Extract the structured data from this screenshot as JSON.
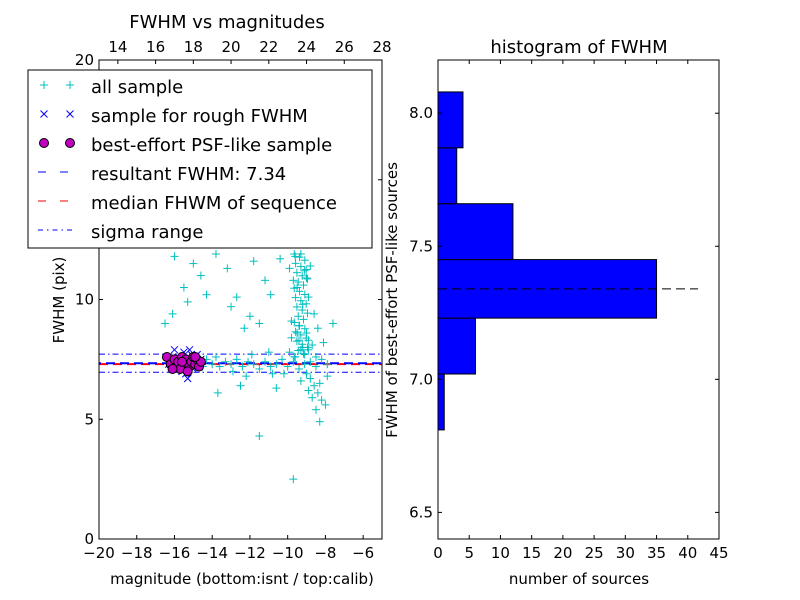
{
  "colors": {
    "all_sample": "#00bfbf",
    "rough_sample": "#0000ff",
    "best_sample_face": "#bf00bf",
    "best_sample_edge": "#000000",
    "resultant": "#0000ff",
    "median": "#ff0000",
    "sigma": "#0000ff",
    "hist_bar": "#0000ff",
    "hist_median": "#000000"
  },
  "chart_data": [
    {
      "type": "scatter",
      "title": "FWHM vs magnitudes",
      "xlabel": "magnitude (bottom:isnt / top:calib)",
      "ylabel": "FWHM (pix)",
      "xlim": [
        -20,
        -5
      ],
      "ylim": [
        0,
        20
      ],
      "top_xlim": [
        13,
        28
      ],
      "xticks": [
        "−20",
        "−18",
        "−16",
        "−14",
        "−12",
        "−10",
        "−8",
        "−6"
      ],
      "top_xticks": [
        "14",
        "16",
        "18",
        "20",
        "22",
        "24",
        "26",
        "28"
      ],
      "yticks": [
        "0",
        "5",
        "10",
        "15",
        "20"
      ],
      "legend_position": "upper-left",
      "legend": [
        {
          "label": "all sample",
          "marker": "plus",
          "color": "#00bfbf"
        },
        {
          "label": "sample for rough FWHM",
          "marker": "x",
          "color": "#0000ff"
        },
        {
          "label": "best-effort PSF-like sample",
          "marker": "circle",
          "color": "#bf00bf"
        },
        {
          "label": "resultant FWHM: 7.34",
          "marker": "dashed",
          "color": "#0000ff"
        },
        {
          "label": "median FHWM of sequence",
          "marker": "dashed",
          "color": "#ff0000"
        },
        {
          "label": "sigma range",
          "marker": "dashdot",
          "color": "#0000ff"
        }
      ],
      "resultant_fwhm": 7.34,
      "median_fwhm": 7.3,
      "sigma_range": [
        6.96,
        7.72
      ],
      "series": [
        {
          "name": "all sample",
          "points": [
            [
              -16.0,
              11.8
            ],
            [
              -15.5,
              10.5
            ],
            [
              -16.1,
              9.4
            ],
            [
              -15.3,
              9.9
            ],
            [
              -14.3,
              10.2
            ],
            [
              -14.6,
              11.0
            ],
            [
              -13.2,
              11.3
            ],
            [
              -12.7,
              10.1
            ],
            [
              -12.0,
              9.3
            ],
            [
              -11.8,
              11.6
            ],
            [
              -11.2,
              10.8
            ],
            [
              -13.8,
              11.9
            ],
            [
              -16.5,
              9.0
            ],
            [
              -15.0,
              11.5
            ],
            [
              -13.0,
              9.7
            ],
            [
              -12.3,
              8.8
            ],
            [
              -11.5,
              9.0
            ],
            [
              -10.9,
              10.2
            ],
            [
              -10.4,
              11.7
            ],
            [
              -9.9,
              11.3
            ],
            [
              -9.5,
              10.5
            ],
            [
              -9.2,
              9.8
            ],
            [
              -8.9,
              10.1
            ],
            [
              -8.6,
              9.4
            ],
            [
              -9.8,
              9.1
            ],
            [
              -9.4,
              8.9
            ],
            [
              -9.0,
              8.6
            ],
            [
              -8.4,
              8.8
            ],
            [
              -8.1,
              8.2
            ],
            [
              -7.6,
              9.0
            ],
            [
              -9.3,
              11.9
            ],
            [
              -9.6,
              11.8
            ],
            [
              -9.1,
              11.2
            ],
            [
              -8.8,
              11.4
            ],
            [
              -9.7,
              10.8
            ],
            [
              -9.0,
              10.9
            ],
            [
              -9.4,
              8.3
            ],
            [
              -9.2,
              8.0
            ],
            [
              -8.9,
              7.9
            ],
            [
              -8.7,
              8.1
            ],
            [
              -9.1,
              7.7
            ],
            [
              -8.5,
              7.6
            ],
            [
              -9.0,
              6.9
            ],
            [
              -8.8,
              6.7
            ],
            [
              -8.6,
              6.4
            ],
            [
              -8.4,
              6.1
            ],
            [
              -8.2,
              5.8
            ],
            [
              -8.0,
              5.6
            ],
            [
              -9.3,
              6.6
            ],
            [
              -8.9,
              6.2
            ],
            [
              -8.7,
              5.9
            ],
            [
              -8.3,
              6.5
            ],
            [
              -7.9,
              6.8
            ],
            [
              -8.5,
              5.4
            ],
            [
              -8.3,
              4.9
            ],
            [
              -11.5,
              4.3
            ],
            [
              -9.7,
              2.5
            ],
            [
              -13.7,
              6.1
            ],
            [
              -12.5,
              6.4
            ],
            [
              -10.6,
              6.3
            ],
            [
              -14.0,
              7.3
            ],
            [
              -13.6,
              7.2
            ],
            [
              -13.3,
              7.4
            ],
            [
              -13.0,
              7.3
            ],
            [
              -12.7,
              7.5
            ],
            [
              -12.4,
              7.2
            ],
            [
              -12.1,
              7.4
            ],
            [
              -11.8,
              7.3
            ],
            [
              -11.5,
              7.1
            ],
            [
              -11.2,
              7.4
            ],
            [
              -10.9,
              7.2
            ],
            [
              -10.6,
              7.3
            ],
            [
              -10.3,
              7.5
            ],
            [
              -10.0,
              7.2
            ],
            [
              -9.7,
              7.4
            ],
            [
              -9.4,
              7.1
            ],
            [
              -9.1,
              7.3
            ],
            [
              -8.8,
              7.4
            ],
            [
              -8.5,
              7.2
            ],
            [
              -8.2,
              7.5
            ],
            [
              -7.9,
              7.3
            ],
            [
              -13.8,
              7.6
            ],
            [
              -12.9,
              7.0
            ],
            [
              -11.9,
              7.7
            ],
            [
              -10.8,
              6.9
            ],
            [
              -9.9,
              7.8
            ],
            [
              -12.2,
              6.8
            ],
            [
              -11.0,
              7.8
            ],
            [
              -10.2,
              6.9
            ],
            [
              -9.6,
              7.6
            ],
            [
              -9.3,
              7.9
            ],
            [
              -8.9,
              8.3
            ],
            [
              -9.5,
              8.6
            ],
            [
              -9.8,
              8.4
            ],
            [
              -14.3,
              7.5
            ],
            [
              -14.5,
              7.2
            ],
            [
              -15.0,
              7.6
            ],
            [
              -15.8,
              7.4
            ],
            [
              -16.3,
              7.5
            ],
            [
              -15.2,
              7.2
            ],
            [
              -14.8,
              7.4
            ],
            [
              -15.5,
              7.6
            ]
          ]
        },
        {
          "name": "sample for rough FWHM",
          "points": [
            [
              -16.3,
              7.3
            ],
            [
              -16.1,
              7.6
            ],
            [
              -15.9,
              7.2
            ],
            [
              -15.7,
              7.5
            ],
            [
              -15.5,
              7.8
            ],
            [
              -15.3,
              7.3
            ],
            [
              -15.1,
              7.7
            ],
            [
              -14.9,
              7.4
            ],
            [
              -14.7,
              7.2
            ],
            [
              -15.6,
              7.0
            ],
            [
              -15.2,
              7.9
            ],
            [
              -14.8,
              7.7
            ],
            [
              -16.0,
              7.9
            ],
            [
              -15.4,
              6.9
            ],
            [
              -15.0,
              7.1
            ],
            [
              -14.6,
              7.5
            ],
            [
              -15.3,
              6.7
            ]
          ]
        },
        {
          "name": "best-effort PSF-like sample",
          "points": [
            [
              -16.4,
              7.6
            ],
            [
              -16.2,
              7.3
            ],
            [
              -16.0,
              7.5
            ],
            [
              -15.9,
              7.2
            ],
            [
              -15.8,
              7.4
            ],
            [
              -15.6,
              7.6
            ],
            [
              -15.5,
              7.3
            ],
            [
              -15.4,
              7.5
            ],
            [
              -15.2,
              7.2
            ],
            [
              -15.1,
              7.4
            ],
            [
              -15.0,
              7.6
            ],
            [
              -14.9,
              7.3
            ],
            [
              -14.8,
              7.5
            ],
            [
              -14.7,
              7.2
            ],
            [
              -14.6,
              7.4
            ],
            [
              -15.7,
              7.1
            ],
            [
              -15.3,
              7.0
            ],
            [
              -14.9,
              7.6
            ],
            [
              -16.1,
              7.1
            ],
            [
              -15.6,
              7.4
            ]
          ]
        }
      ]
    },
    {
      "type": "bar",
      "orientation": "horizontal",
      "title": "histogram of FWHM",
      "xlabel": "number of sources",
      "ylabel": "FWHM of best-effort PSF-like sources",
      "xlim": [
        0,
        45
      ],
      "ylim": [
        6.4,
        8.2
      ],
      "xticks": [
        "0",
        "5",
        "10",
        "15",
        "20",
        "25",
        "30",
        "35",
        "40",
        "45"
      ],
      "yticks": [
        "6.5",
        "7.0",
        "7.5",
        "8.0"
      ],
      "bins": [
        {
          "low": 6.81,
          "high": 7.02,
          "count": 1
        },
        {
          "low": 7.02,
          "high": 7.23,
          "count": 6
        },
        {
          "low": 7.23,
          "high": 7.45,
          "count": 35
        },
        {
          "low": 7.45,
          "high": 7.66,
          "count": 12
        },
        {
          "low": 7.66,
          "high": 7.87,
          "count": 3
        },
        {
          "low": 7.87,
          "high": 8.08,
          "count": 4
        }
      ],
      "median_line": 7.34
    }
  ]
}
